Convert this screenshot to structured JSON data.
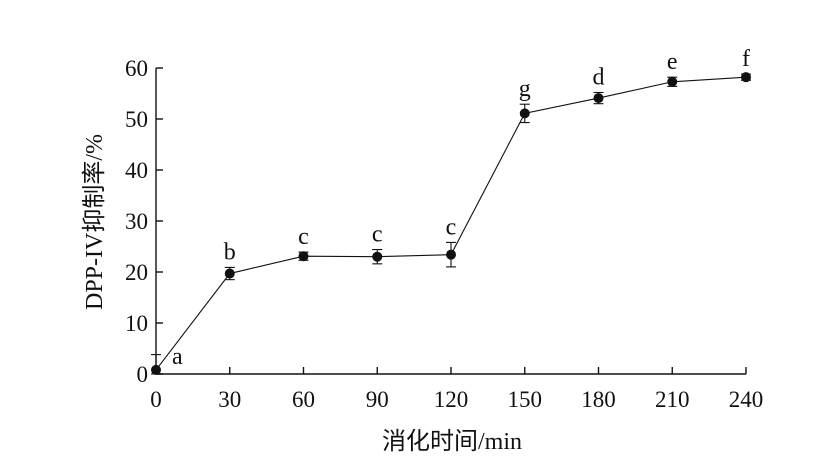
{
  "chart_data": {
    "type": "line",
    "xlabel": "消化时间/min",
    "ylabel": "DPP-IV抑制率/%",
    "xlim": [
      0,
      240
    ],
    "ylim": [
      0,
      60
    ],
    "xticks": [
      0,
      30,
      60,
      90,
      120,
      150,
      180,
      210,
      240
    ],
    "yticks": [
      0,
      10,
      20,
      30,
      40,
      50,
      60
    ],
    "grid": false,
    "series": [
      {
        "x": [
          0,
          30,
          60,
          90,
          120,
          150,
          180,
          210,
          240
        ],
        "y": [
          0.8,
          19.7,
          23.1,
          23.0,
          23.4,
          51.1,
          54.1,
          57.3,
          58.2
        ],
        "error": [
          3.0,
          1.2,
          0.8,
          1.4,
          2.4,
          1.8,
          1.1,
          0.9,
          0.6
        ],
        "labels": [
          "a",
          "b",
          "c",
          "c",
          "c",
          "g",
          "d",
          "e",
          "f"
        ]
      }
    ]
  }
}
